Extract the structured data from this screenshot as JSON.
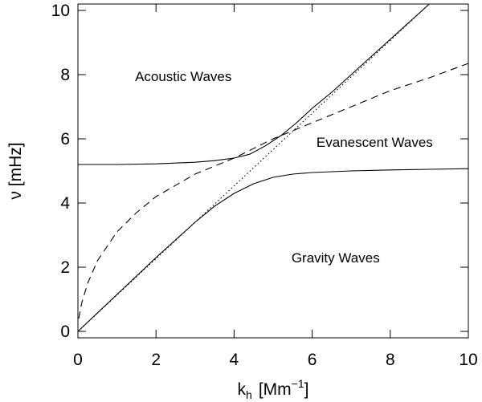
{
  "chart_data": {
    "type": "line",
    "x_label": {
      "base": "k",
      "sub": "h",
      "unit_open": "[Mm",
      "sup": "−1",
      "unit_close": "]"
    },
    "y_label": "ν [mHz]",
    "xlim": [
      0,
      10
    ],
    "ylim": [
      -0.2,
      10.2
    ],
    "xticks": [
      0,
      2,
      4,
      6,
      8,
      10
    ],
    "yticks": [
      0,
      2,
      4,
      6,
      8,
      10
    ],
    "series": [
      {
        "style": "solid",
        "color": "#000000",
        "x": [
          0,
          1,
          2,
          3,
          3.5,
          4,
          4.4,
          4.8,
          5.2,
          5.6,
          6,
          6.5,
          7,
          7.5,
          8,
          8.5,
          9
        ],
        "values": [
          5.2,
          5.2,
          5.22,
          5.27,
          5.32,
          5.4,
          5.52,
          5.78,
          6.1,
          6.5,
          6.95,
          7.45,
          8.0,
          8.55,
          9.1,
          9.65,
          10.2
        ]
      },
      {
        "style": "solid",
        "color": "#000000",
        "x": [
          0,
          1,
          2,
          3,
          3.5,
          4,
          4.5,
          5,
          5.5,
          6,
          7,
          8,
          9,
          10
        ],
        "values": [
          0,
          1.15,
          2.3,
          3.4,
          3.9,
          4.3,
          4.6,
          4.8,
          4.9,
          4.95,
          5.0,
          5.03,
          5.05,
          5.07
        ]
      },
      {
        "style": "dashed",
        "color": "#000000",
        "x": [
          0.02,
          0.1,
          0.25,
          0.5,
          1,
          1.5,
          2,
          3,
          4,
          5,
          6,
          7,
          8,
          9,
          10
        ],
        "values": [
          0.4,
          0.9,
          1.5,
          2.2,
          3.1,
          3.7,
          4.2,
          4.9,
          5.4,
          6.0,
          6.5,
          7.0,
          7.5,
          7.9,
          8.35
        ]
      },
      {
        "style": "dotted",
        "color": "#000000",
        "x": [
          0,
          9
        ],
        "values": [
          0,
          10.2
        ]
      }
    ],
    "annotations": [
      {
        "text": "Acoustic Waves",
        "x": 2.7,
        "y": 7.8
      },
      {
        "text": "Evanescent Waves",
        "x": 7.6,
        "y": 5.75
      },
      {
        "text": "Gravity Waves",
        "x": 6.6,
        "y": 2.15
      }
    ]
  }
}
